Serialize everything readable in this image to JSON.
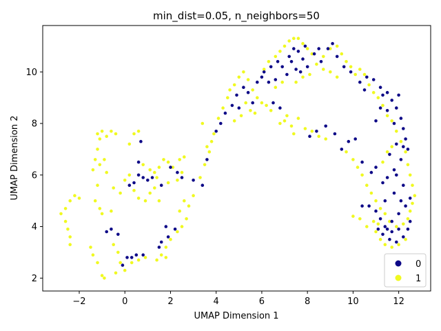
{
  "chart_data": {
    "type": "scatter",
    "title": "min_dist=0.05, n_neighbors=50",
    "xlabel": "UMAP Dimension 1",
    "ylabel": "UMAP Dimension 2",
    "xlim": [
      -3.6,
      13.4
    ],
    "ylim": [
      1.5,
      11.8
    ],
    "xticks": [
      -2,
      0,
      2,
      4,
      6,
      8,
      10,
      12
    ],
    "yticks": [
      2,
      4,
      6,
      8,
      10
    ],
    "grid": false,
    "legend_position": "bottom-right",
    "series": [
      {
        "name": "0",
        "color": "#0d0887",
        "points": [
          [
            -0.8,
            3.8
          ],
          [
            -0.6,
            3.9
          ],
          [
            -0.3,
            3.7
          ],
          [
            0.1,
            2.8
          ],
          [
            0.3,
            2.8
          ],
          [
            0.5,
            2.9
          ],
          [
            0.8,
            2.9
          ],
          [
            -0.1,
            2.5
          ],
          [
            0.2,
            5.6
          ],
          [
            0.4,
            5.7
          ],
          [
            0.6,
            6.0
          ],
          [
            0.7,
            7.3
          ],
          [
            0.6,
            6.5
          ],
          [
            0.8,
            5.9
          ],
          [
            1.0,
            5.8
          ],
          [
            1.2,
            5.9
          ],
          [
            2.0,
            6.3
          ],
          [
            2.3,
            6.1
          ],
          [
            2.5,
            5.9
          ],
          [
            1.6,
            5.6
          ],
          [
            1.5,
            3.2
          ],
          [
            1.6,
            3.4
          ],
          [
            1.9,
            3.6
          ],
          [
            2.2,
            3.9
          ],
          [
            1.8,
            4.0
          ],
          [
            3.0,
            5.8
          ],
          [
            3.4,
            5.6
          ],
          [
            3.6,
            6.6
          ],
          [
            4.0,
            7.7
          ],
          [
            4.2,
            8.0
          ],
          [
            4.4,
            8.4
          ],
          [
            4.7,
            8.7
          ],
          [
            4.9,
            9.1
          ],
          [
            5.2,
            9.4
          ],
          [
            5.4,
            9.2
          ],
          [
            5.6,
            8.8
          ],
          [
            5.0,
            8.6
          ],
          [
            5.8,
            9.6
          ],
          [
            6.1,
            10.0
          ],
          [
            6.4,
            10.2
          ],
          [
            6.7,
            10.4
          ],
          [
            6.9,
            10.2
          ],
          [
            7.2,
            10.6
          ],
          [
            7.4,
            10.9
          ],
          [
            7.6,
            10.8
          ],
          [
            7.8,
            10.5
          ],
          [
            8.0,
            10.2
          ],
          [
            7.5,
            10.1
          ],
          [
            7.1,
            9.9
          ],
          [
            6.6,
            9.7
          ],
          [
            6.3,
            9.6
          ],
          [
            6.0,
            9.8
          ],
          [
            6.5,
            8.8
          ],
          [
            6.8,
            8.6
          ],
          [
            7.3,
            10.4
          ],
          [
            7.9,
            11.0
          ],
          [
            8.3,
            10.7
          ],
          [
            8.6,
            10.4
          ],
          [
            8.9,
            10.9
          ],
          [
            9.3,
            10.6
          ],
          [
            9.6,
            10.2
          ],
          [
            9.9,
            10.0
          ],
          [
            10.3,
            9.6
          ],
          [
            10.6,
            9.8
          ],
          [
            10.9,
            9.7
          ],
          [
            11.2,
            9.4
          ],
          [
            11.5,
            9.2
          ],
          [
            11.7,
            8.9
          ],
          [
            11.9,
            8.6
          ],
          [
            12.1,
            8.2
          ],
          [
            12.2,
            7.8
          ],
          [
            12.3,
            7.4
          ],
          [
            12.4,
            7.0
          ],
          [
            12.1,
            6.6
          ],
          [
            11.8,
            6.2
          ],
          [
            11.5,
            5.9
          ],
          [
            11.3,
            5.7
          ],
          [
            11.0,
            6.3
          ],
          [
            10.8,
            6.1
          ],
          [
            10.4,
            6.5
          ],
          [
            10.1,
            7.4
          ],
          [
            9.8,
            7.3
          ],
          [
            9.5,
            7.0
          ],
          [
            9.2,
            7.6
          ],
          [
            8.8,
            7.9
          ],
          [
            8.4,
            7.7
          ],
          [
            8.1,
            7.5
          ],
          [
            11.6,
            6.8
          ],
          [
            11.9,
            6.0
          ],
          [
            12.2,
            5.6
          ],
          [
            12.5,
            5.1
          ],
          [
            12.3,
            4.8
          ],
          [
            12.0,
            4.5
          ],
          [
            11.7,
            4.2
          ],
          [
            11.5,
            3.9
          ],
          [
            11.3,
            3.7
          ],
          [
            11.6,
            3.5
          ],
          [
            11.9,
            3.4
          ],
          [
            12.2,
            3.6
          ],
          [
            12.4,
            3.9
          ],
          [
            12.5,
            4.2
          ],
          [
            11.2,
            4.3
          ],
          [
            11.0,
            4.6
          ],
          [
            10.7,
            4.8
          ],
          [
            10.4,
            4.8
          ],
          [
            11.4,
            5.0
          ],
          [
            11.8,
            5.3
          ],
          [
            12.1,
            5.0
          ],
          [
            11.4,
            4.0
          ],
          [
            11.1,
            3.9
          ],
          [
            11.7,
            3.8
          ],
          [
            12.0,
            3.9
          ],
          [
            11.9,
            7.2
          ],
          [
            12.2,
            7.1
          ],
          [
            11.5,
            8.5
          ],
          [
            11.2,
            8.6
          ],
          [
            11.0,
            8.1
          ],
          [
            11.8,
            8.0
          ],
          [
            12.0,
            9.1
          ],
          [
            11.3,
            9.1
          ],
          [
            10.5,
            9.3
          ],
          [
            7.7,
            10.0
          ],
          [
            8.5,
            10.9
          ],
          [
            9.1,
            11.1
          ]
        ]
      },
      {
        "name": "1",
        "color": "#f0f921",
        "points": [
          [
            -2.8,
            4.5
          ],
          [
            -2.6,
            4.7
          ],
          [
            -2.4,
            5.0
          ],
          [
            -2.2,
            5.2
          ],
          [
            -2.0,
            5.1
          ],
          [
            -2.6,
            4.2
          ],
          [
            -2.5,
            3.9
          ],
          [
            -2.4,
            3.6
          ],
          [
            -2.4,
            3.3
          ],
          [
            -1.2,
            7.6
          ],
          [
            -1.0,
            7.7
          ],
          [
            -0.8,
            7.5
          ],
          [
            -0.6,
            7.7
          ],
          [
            -0.4,
            7.6
          ],
          [
            -1.1,
            7.4
          ],
          [
            -1.2,
            7.0
          ],
          [
            -1.3,
            6.6
          ],
          [
            -1.4,
            6.2
          ],
          [
            -1.1,
            6.4
          ],
          [
            -0.9,
            6.6
          ],
          [
            -0.8,
            6.1
          ],
          [
            -1.3,
            5.0
          ],
          [
            -1.1,
            4.7
          ],
          [
            -1.0,
            4.5
          ],
          [
            -1.2,
            5.6
          ],
          [
            -0.5,
            5.5
          ],
          [
            -0.2,
            5.3
          ],
          [
            -0.6,
            4.6
          ],
          [
            -1.5,
            3.2
          ],
          [
            -1.4,
            2.9
          ],
          [
            -1.2,
            2.6
          ],
          [
            -1.0,
            2.1
          ],
          [
            -0.9,
            2.0
          ],
          [
            -0.5,
            3.3
          ],
          [
            -0.3,
            3.0
          ],
          [
            -0.2,
            2.6
          ],
          [
            -0.4,
            2.2
          ],
          [
            0.0,
            2.3
          ],
          [
            0.3,
            2.6
          ],
          [
            0.6,
            2.7
          ],
          [
            0.9,
            2.8
          ],
          [
            0.2,
            7.2
          ],
          [
            0.4,
            7.6
          ],
          [
            0.6,
            7.7
          ],
          [
            0.2,
            6.0
          ],
          [
            0.0,
            5.8
          ],
          [
            0.4,
            5.4
          ],
          [
            0.6,
            5.1
          ],
          [
            0.9,
            5.0
          ],
          [
            1.1,
            5.3
          ],
          [
            1.3,
            6.1
          ],
          [
            1.5,
            6.3
          ],
          [
            1.7,
            6.6
          ],
          [
            1.9,
            6.5
          ],
          [
            2.1,
            6.3
          ],
          [
            2.4,
            6.6
          ],
          [
            2.6,
            6.7
          ],
          [
            2.5,
            6.1
          ],
          [
            2.3,
            5.8
          ],
          [
            1.9,
            5.7
          ],
          [
            1.4,
            5.9
          ],
          [
            1.1,
            6.2
          ],
          [
            0.8,
            6.4
          ],
          [
            1.5,
            5.0
          ],
          [
            1.3,
            5.5
          ],
          [
            1.6,
            2.9
          ],
          [
            1.8,
            3.2
          ],
          [
            2.0,
            3.5
          ],
          [
            2.3,
            3.8
          ],
          [
            2.5,
            4.0
          ],
          [
            2.7,
            4.3
          ],
          [
            2.8,
            4.8
          ],
          [
            2.6,
            5.0
          ],
          [
            2.4,
            4.6
          ],
          [
            1.4,
            2.7
          ],
          [
            1.8,
            2.8
          ],
          [
            3.0,
            5.2
          ],
          [
            3.3,
            5.9
          ],
          [
            3.5,
            6.4
          ],
          [
            3.7,
            6.9
          ],
          [
            3.8,
            7.3
          ],
          [
            3.9,
            7.6
          ],
          [
            3.4,
            8.0
          ],
          [
            3.6,
            7.1
          ],
          [
            4.1,
            8.2
          ],
          [
            4.3,
            8.6
          ],
          [
            4.5,
            9.0
          ],
          [
            4.6,
            9.3
          ],
          [
            4.8,
            9.5
          ],
          [
            5.0,
            9.8
          ],
          [
            5.2,
            10.0
          ],
          [
            5.4,
            9.7
          ],
          [
            5.6,
            9.3
          ],
          [
            5.8,
            9.0
          ],
          [
            6.0,
            8.8
          ],
          [
            6.2,
            8.7
          ],
          [
            6.4,
            8.5
          ],
          [
            5.3,
            8.8
          ],
          [
            5.1,
            8.3
          ],
          [
            4.8,
            8.1
          ],
          [
            5.5,
            8.5
          ],
          [
            5.7,
            8.4
          ],
          [
            6.1,
            10.1
          ],
          [
            6.3,
            10.4
          ],
          [
            6.6,
            10.6
          ],
          [
            6.8,
            10.8
          ],
          [
            7.0,
            11.0
          ],
          [
            7.2,
            11.2
          ],
          [
            7.4,
            11.3
          ],
          [
            7.6,
            11.3
          ],
          [
            7.8,
            11.1
          ],
          [
            8.0,
            10.9
          ],
          [
            8.2,
            10.7
          ],
          [
            7.0,
            8.1
          ],
          [
            7.3,
            7.9
          ],
          [
            7.6,
            8.2
          ],
          [
            7.9,
            7.8
          ],
          [
            8.2,
            7.7
          ],
          [
            8.5,
            7.5
          ],
          [
            8.8,
            7.4
          ],
          [
            7.4,
            7.6
          ],
          [
            7.1,
            8.3
          ],
          [
            6.8,
            8.0
          ],
          [
            8.4,
            10.3
          ],
          [
            8.7,
            10.6
          ],
          [
            9.0,
            10.9
          ],
          [
            9.3,
            11.0
          ],
          [
            9.5,
            10.7
          ],
          [
            9.7,
            10.4
          ],
          [
            9.9,
            10.2
          ],
          [
            10.1,
            9.9
          ],
          [
            10.3,
            10.1
          ],
          [
            10.5,
            9.9
          ],
          [
            10.7,
            9.5
          ],
          [
            10.9,
            9.2
          ],
          [
            11.1,
            9.0
          ],
          [
            11.3,
            8.7
          ],
          [
            11.5,
            8.3
          ],
          [
            11.7,
            8.1
          ],
          [
            11.9,
            7.7
          ],
          [
            12.1,
            7.3
          ],
          [
            12.3,
            6.9
          ],
          [
            12.4,
            6.4
          ],
          [
            12.5,
            6.0
          ],
          [
            12.6,
            5.6
          ],
          [
            12.7,
            5.2
          ],
          [
            12.6,
            4.9
          ],
          [
            12.5,
            4.6
          ],
          [
            12.4,
            4.3
          ],
          [
            12.2,
            4.1
          ],
          [
            11.9,
            4.0
          ],
          [
            11.6,
            4.2
          ],
          [
            11.4,
            4.5
          ],
          [
            11.2,
            4.7
          ],
          [
            11.0,
            5.0
          ],
          [
            10.8,
            5.3
          ],
          [
            10.6,
            5.6
          ],
          [
            10.4,
            6.0
          ],
          [
            10.2,
            6.3
          ],
          [
            10.0,
            6.6
          ],
          [
            9.7,
            6.9
          ],
          [
            11.0,
            3.8
          ],
          [
            11.2,
            3.5
          ],
          [
            11.4,
            3.3
          ],
          [
            11.7,
            3.2
          ],
          [
            12.0,
            3.3
          ],
          [
            12.3,
            3.5
          ],
          [
            10.6,
            4.0
          ],
          [
            10.9,
            4.2
          ],
          [
            11.1,
            4.1
          ],
          [
            10.0,
            4.4
          ],
          [
            10.3,
            4.3
          ],
          [
            11.3,
            6.5
          ],
          [
            11.5,
            6.9
          ],
          [
            11.7,
            7.1
          ],
          [
            9.3,
            9.8
          ],
          [
            9.0,
            10.0
          ],
          [
            8.7,
            10.1
          ],
          [
            8.1,
            9.9
          ],
          [
            7.8,
            9.8
          ],
          [
            7.5,
            9.6
          ],
          [
            6.9,
            9.6
          ],
          [
            6.6,
            9.4
          ]
        ]
      }
    ]
  }
}
